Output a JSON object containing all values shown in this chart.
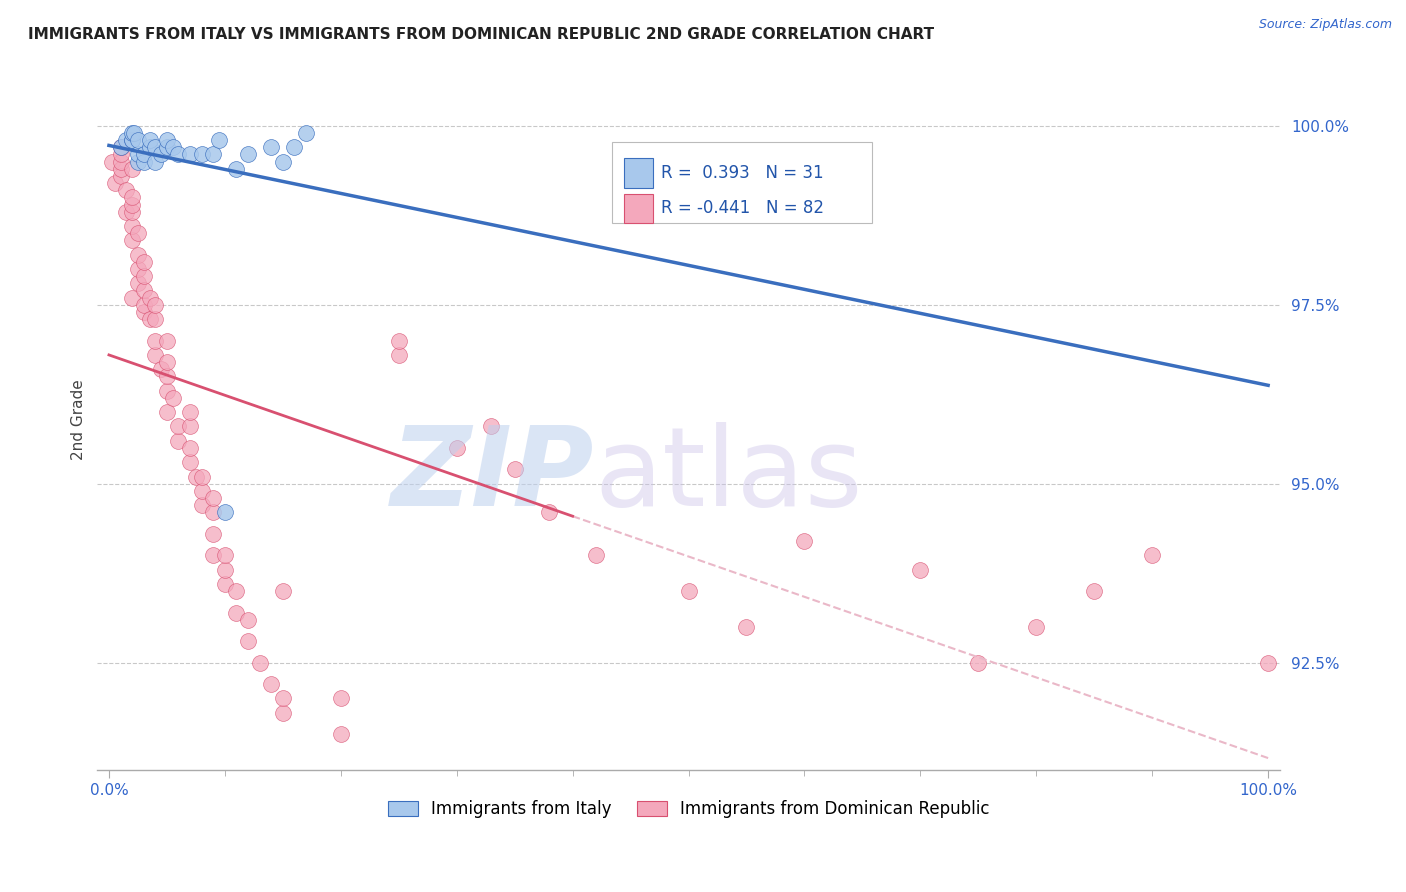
{
  "title": "IMMIGRANTS FROM ITALY VS IMMIGRANTS FROM DOMINICAN REPUBLIC 2ND GRADE CORRELATION CHART",
  "source": "Source: ZipAtlas.com",
  "ylabel": "2nd Grade",
  "x_tick_labels": [
    "0.0%",
    "100.0%"
  ],
  "y_tick_labels": [
    "92.5%",
    "95.0%",
    "97.5%",
    "100.0%"
  ],
  "y_ticks": [
    92.5,
    95.0,
    97.5,
    100.0
  ],
  "x_ticks": [
    0,
    100
  ],
  "y_min": 91.0,
  "y_max": 100.8,
  "x_min": -1.0,
  "x_max": 101.0,
  "legend_italy": "Immigrants from Italy",
  "legend_dr": "Immigrants from Dominican Republic",
  "R_italy": "0.393",
  "N_italy": "31",
  "R_dr": "-0.441",
  "N_dr": "82",
  "color_italy": "#A8C8EC",
  "color_dr": "#F4A8BC",
  "color_italy_line": "#3A6EBE",
  "color_dr_line": "#D85070",
  "color_dr_dashed": "#EAB8C8",
  "watermark_zip": "#BDD0EE",
  "watermark_atlas": "#C8C0E8",
  "background_color": "#FFFFFF",
  "grid_color": "#BBBBBB",
  "italy_x": [
    1.0,
    1.5,
    2.0,
    2.0,
    2.0,
    2.2,
    2.5,
    2.5,
    2.5,
    3.0,
    3.0,
    3.5,
    3.5,
    4.0,
    4.0,
    4.5,
    5.0,
    5.0,
    5.5,
    6.0,
    7.0,
    8.0,
    9.0,
    9.5,
    10.0,
    11.0,
    12.0,
    14.0,
    15.0,
    16.0,
    17.0
  ],
  "italy_y": [
    99.7,
    99.8,
    99.8,
    99.8,
    99.9,
    99.9,
    99.5,
    99.6,
    99.8,
    99.5,
    99.6,
    99.7,
    99.8,
    99.5,
    99.7,
    99.6,
    99.7,
    99.8,
    99.7,
    99.6,
    99.6,
    99.6,
    99.6,
    99.8,
    94.6,
    99.4,
    99.6,
    99.7,
    99.5,
    99.7,
    99.9
  ],
  "dr_x": [
    0.3,
    0.5,
    1.0,
    1.0,
    1.0,
    1.0,
    1.0,
    1.5,
    1.5,
    2.0,
    2.0,
    2.0,
    2.0,
    2.0,
    2.0,
    2.0,
    2.5,
    2.5,
    2.5,
    2.5,
    3.0,
    3.0,
    3.0,
    3.0,
    3.0,
    3.5,
    3.5,
    4.0,
    4.0,
    4.0,
    4.0,
    4.5,
    5.0,
    5.0,
    5.0,
    5.0,
    5.0,
    5.5,
    6.0,
    6.0,
    7.0,
    7.0,
    7.0,
    7.0,
    7.5,
    8.0,
    8.0,
    8.0,
    9.0,
    9.0,
    9.0,
    9.0,
    10.0,
    10.0,
    10.0,
    11.0,
    11.0,
    12.0,
    12.0,
    13.0,
    14.0,
    15.0,
    15.0,
    15.0,
    20.0,
    20.0,
    25.0,
    25.0,
    30.0,
    33.0,
    35.0,
    38.0,
    42.0,
    50.0,
    55.0,
    60.0,
    70.0,
    75.0,
    80.0,
    85.0,
    90.0,
    100.0
  ],
  "dr_y": [
    99.5,
    99.2,
    99.3,
    99.4,
    99.5,
    99.6,
    99.7,
    98.8,
    99.1,
    97.6,
    98.4,
    98.6,
    98.8,
    98.9,
    99.0,
    99.4,
    97.8,
    98.0,
    98.2,
    98.5,
    97.4,
    97.5,
    97.7,
    97.9,
    98.1,
    97.3,
    97.6,
    96.8,
    97.0,
    97.3,
    97.5,
    96.6,
    96.0,
    96.3,
    96.5,
    96.7,
    97.0,
    96.2,
    95.6,
    95.8,
    95.3,
    95.5,
    95.8,
    96.0,
    95.1,
    94.7,
    94.9,
    95.1,
    94.0,
    94.3,
    94.6,
    94.8,
    93.6,
    93.8,
    94.0,
    93.2,
    93.5,
    92.8,
    93.1,
    92.5,
    92.2,
    91.8,
    92.0,
    93.5,
    91.5,
    92.0,
    96.8,
    97.0,
    95.5,
    95.8,
    95.2,
    94.6,
    94.0,
    93.5,
    93.0,
    94.2,
    93.8,
    92.5,
    93.0,
    93.5,
    94.0,
    92.5
  ]
}
